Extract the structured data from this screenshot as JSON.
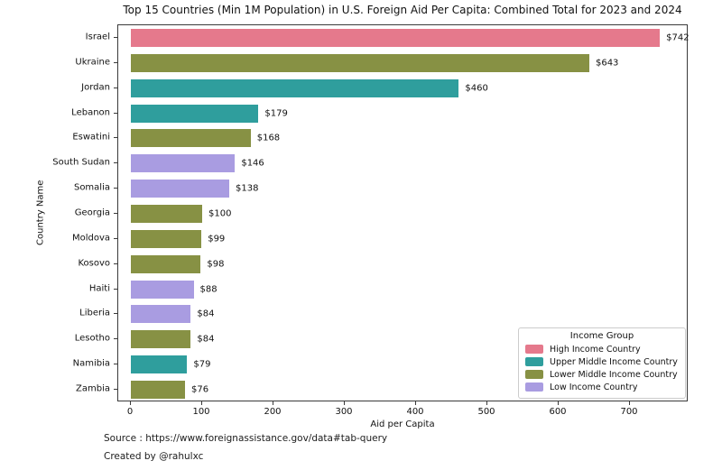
{
  "chart_data": {
    "type": "bar",
    "orientation": "horizontal",
    "title": "Top 15 Countries (Min 1M Population) in U.S. Foreign Aid Per Capita: Combined Total for 2023 and 2024",
    "xlabel": "Aid per Capita",
    "ylabel": "Country Name",
    "xticks": [
      0,
      100,
      200,
      300,
      400,
      500,
      600,
      700
    ],
    "xlim": [
      -18,
      782
    ],
    "grid": false,
    "value_prefix": "$",
    "categories": [
      "Israel",
      "Ukraine",
      "Jordan",
      "Lebanon",
      "Eswatini",
      "South Sudan",
      "Somalia",
      "Georgia",
      "Moldova",
      "Kosovo",
      "Haiti",
      "Liberia",
      "Lesotho",
      "Namibia",
      "Zambia"
    ],
    "values": [
      742,
      643,
      460,
      179,
      168,
      146,
      138,
      100,
      99,
      98,
      88,
      84,
      84,
      79,
      76
    ],
    "groups": [
      "High Income Country",
      "Lower Middle Income Country",
      "Upper Middle Income Country",
      "Upper Middle Income Country",
      "Lower Middle Income Country",
      "Low Income Country",
      "Low Income Country",
      "Lower Middle Income Country",
      "Lower Middle Income Country",
      "Lower Middle Income Country",
      "Low Income Country",
      "Low Income Country",
      "Lower Middle Income Country",
      "Upper Middle Income Country",
      "Lower Middle Income Country"
    ],
    "legend": {
      "title": "Income Group",
      "position": "lower right",
      "entries": [
        {
          "label": "High Income Country",
          "color": "#e5798c"
        },
        {
          "label": "Upper Middle Income Country",
          "color": "#2f9e9d"
        },
        {
          "label": "Lower Middle Income Country",
          "color": "#879144"
        },
        {
          "label": "Low Income Country",
          "color": "#a99ce1"
        }
      ]
    },
    "colors": {
      "axis": "#3a3a3a",
      "text": "#111111",
      "background": "#ffffff"
    }
  },
  "footer": {
    "source": "Source : https://www.foreignassistance.gov/data#tab-query",
    "credit": "Created by @rahulxc"
  }
}
